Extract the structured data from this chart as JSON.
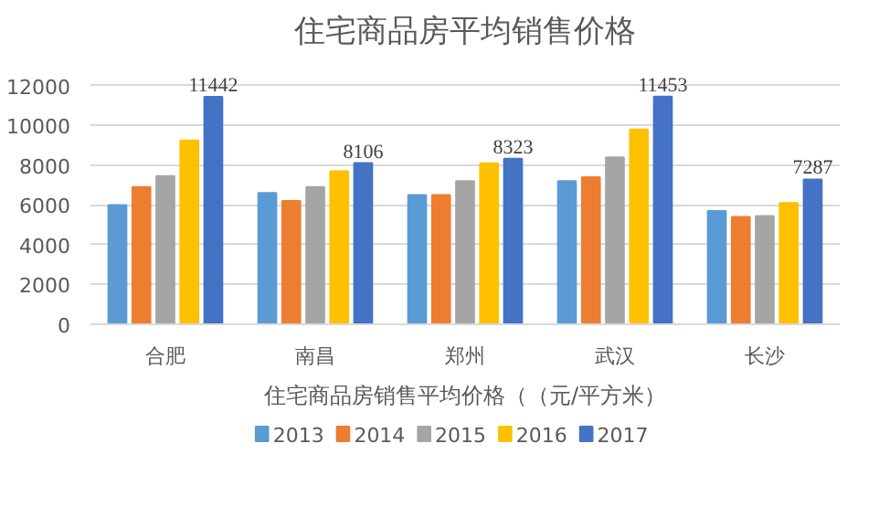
{
  "chart_data": {
    "type": "bar",
    "title": "住宅商品房平均销售价格",
    "xlabel": "住宅商品房销售平均价格（（元/平方米）",
    "categories": [
      "合肥",
      "南昌",
      "郑州",
      "武汉",
      "长沙"
    ],
    "series": [
      {
        "name": "2013",
        "color": "#5b9bd5",
        "values": [
          6000,
          6600,
          6500,
          7200,
          5700
        ]
      },
      {
        "name": "2014",
        "color": "#ed7d31",
        "values": [
          6900,
          6200,
          6500,
          7400,
          5400
        ]
      },
      {
        "name": "2015",
        "color": "#a5a5a5",
        "values": [
          7450,
          6900,
          7200,
          8400,
          5450
        ]
      },
      {
        "name": "2016",
        "color": "#ffc000",
        "values": [
          9250,
          7700,
          8100,
          9800,
          6100
        ]
      },
      {
        "name": "2017",
        "color": "#4472c4",
        "values": [
          11442,
          8106,
          8323,
          11453,
          7287
        ],
        "value_labels": [
          "11442",
          "8106",
          "8323",
          "11453",
          "7287"
        ]
      }
    ],
    "ylim": [
      0,
      12000
    ],
    "yticks": [
      0,
      2000,
      4000,
      6000,
      8000,
      10000,
      12000
    ],
    "grid": "y",
    "legend": "bottom"
  }
}
